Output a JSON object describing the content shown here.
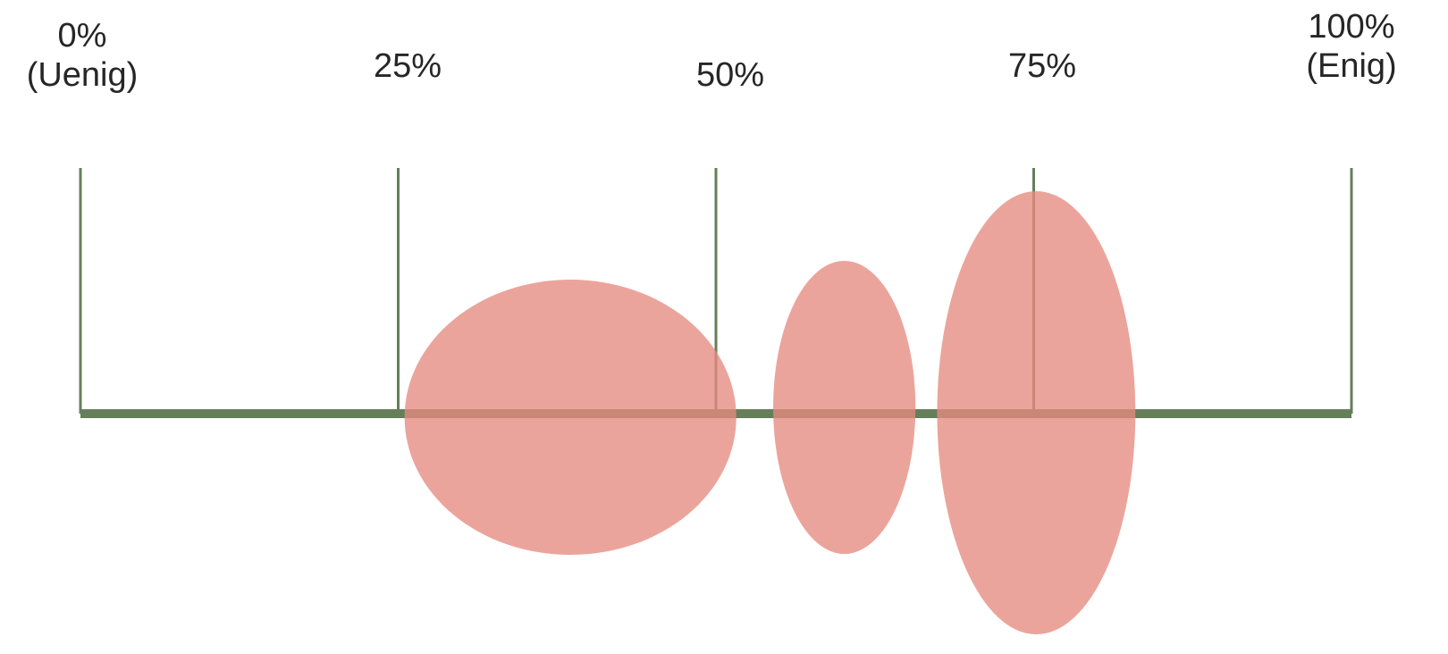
{
  "scale": {
    "ticks": [
      {
        "value": 0,
        "percent_label": "0%",
        "sub_label": "(Uenig)"
      },
      {
        "value": 25,
        "percent_label": "25%",
        "sub_label": ""
      },
      {
        "value": 50,
        "percent_label": "50%",
        "sub_label": ""
      },
      {
        "value": 75,
        "percent_label": "75%",
        "sub_label": ""
      },
      {
        "value": 100,
        "percent_label": "100%",
        "sub_label": "(Enig)"
      }
    ]
  },
  "spread_regions": [
    {
      "from_percent": 25.5,
      "to_percent": 51.6
    },
    {
      "from_percent": 54.5,
      "to_percent": 65.7
    },
    {
      "from_percent": 67.4,
      "to_percent": 83.0
    }
  ],
  "colors": {
    "axis": "#647f5a",
    "region": "#e68a7f"
  }
}
